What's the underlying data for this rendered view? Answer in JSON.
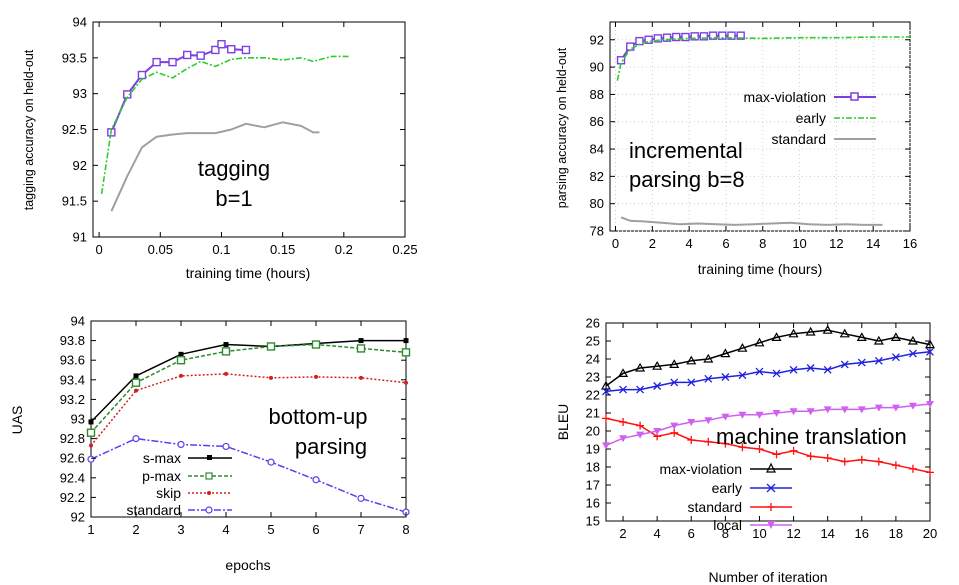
{
  "chart_data": [
    {
      "type": "line",
      "ylabel": "tagging accuracy on held-out",
      "xlabel": "training time (hours)",
      "xlim": [
        -0.005,
        0.25
      ],
      "ylim": [
        91,
        94
      ],
      "xticks": [
        "0",
        "0.05",
        "0.1",
        "0.15",
        "0.2",
        "0.25"
      ],
      "yticks": [
        "91",
        "91.5",
        "92",
        "92.5",
        "93",
        "93.5",
        "94"
      ],
      "annotation": [
        "tagging",
        "b=1"
      ],
      "series": [
        {
          "key": "maxv",
          "color": "#7b3fe4",
          "x": [
            0.01,
            0.023,
            0.035,
            0.047,
            0.06,
            0.072,
            0.083,
            0.095,
            0.1,
            0.108,
            0.12
          ],
          "y": [
            92.46,
            92.99,
            93.26,
            93.44,
            93.44,
            93.54,
            93.53,
            93.61,
            93.69,
            93.62,
            93.61
          ]
        },
        {
          "key": "early",
          "color": "#2fcc2f",
          "x": [
            0.002,
            0.01,
            0.023,
            0.035,
            0.047,
            0.06,
            0.072,
            0.083,
            0.095,
            0.108,
            0.12,
            0.135,
            0.15,
            0.165,
            0.175,
            0.19,
            0.205
          ],
          "y": [
            91.6,
            92.5,
            92.95,
            93.2,
            93.3,
            93.22,
            93.35,
            93.45,
            93.38,
            93.48,
            93.5,
            93.5,
            93.47,
            93.5,
            93.45,
            93.52,
            93.52
          ]
        },
        {
          "key": "std",
          "color": "#a0a0a0",
          "x": [
            0.01,
            0.023,
            0.035,
            0.047,
            0.06,
            0.072,
            0.083,
            0.095,
            0.108,
            0.12,
            0.135,
            0.15,
            0.165,
            0.175,
            0.18
          ],
          "y": [
            91.36,
            91.85,
            92.25,
            92.4,
            92.43,
            92.45,
            92.45,
            92.45,
            92.5,
            92.58,
            92.53,
            92.6,
            92.55,
            92.46,
            92.46
          ]
        }
      ]
    },
    {
      "type": "line",
      "ylabel": "parsing accuracy on held-out",
      "xlabel": "training time (hours)",
      "xlim": [
        -0.3,
        16
      ],
      "ylim": [
        78,
        93.3
      ],
      "xticks": [
        "0",
        "2",
        "4",
        "6",
        "8",
        "10",
        "12",
        "14",
        "16"
      ],
      "yticks": [
        "78",
        "80",
        "82",
        "84",
        "86",
        "88",
        "90",
        "92"
      ],
      "annotation": [
        "incremental",
        "parsing b=8"
      ],
      "legend": [
        "max-violation",
        "early",
        "standard"
      ],
      "series": [
        {
          "key": "maxv",
          "color": "#7b3fe4",
          "x": [
            0.3,
            0.8,
            1.3,
            1.8,
            2.3,
            2.8,
            3.3,
            3.8,
            4.3,
            4.8,
            5.3,
            5.8,
            6.3,
            6.8
          ],
          "y": [
            90.5,
            91.5,
            91.9,
            92.0,
            92.1,
            92.15,
            92.2,
            92.2,
            92.25,
            92.25,
            92.3,
            92.3,
            92.3,
            92.3
          ]
        },
        {
          "key": "early",
          "color": "#2fcc2f",
          "x": [
            0.1,
            0.3,
            0.8,
            1.5,
            2.5,
            4,
            6,
            8,
            10,
            12,
            14,
            16
          ],
          "y": [
            89.0,
            90.3,
            91.3,
            91.8,
            92.0,
            92.1,
            92.15,
            92.1,
            92.15,
            92.15,
            92.2,
            92.2
          ]
        },
        {
          "key": "std",
          "color": "#a0a0a0",
          "x": [
            0.3,
            0.8,
            1.5,
            2.5,
            3.5,
            4.5,
            5.5,
            6.5,
            7.5,
            8.5,
            9.5,
            10.5,
            11.5,
            12.5,
            13.5,
            14.5
          ],
          "y": [
            79.0,
            78.75,
            78.7,
            78.6,
            78.5,
            78.55,
            78.5,
            78.45,
            78.5,
            78.55,
            78.6,
            78.5,
            78.45,
            78.5,
            78.45,
            78.45
          ]
        }
      ]
    },
    {
      "type": "line",
      "ylabel": "UAS",
      "xlabel": "epochs",
      "xlim": [
        1,
        8
      ],
      "ylim": [
        92,
        94
      ],
      "xticks": [
        "1",
        "2",
        "3",
        "4",
        "5",
        "6",
        "7",
        "8"
      ],
      "yticks": [
        "92",
        "92.2",
        "92.4",
        "92.6",
        "92.8",
        "93",
        "93.2",
        "93.4",
        "93.6",
        "93.8",
        "94"
      ],
      "annotation": [
        "bottom-up",
        "parsing"
      ],
      "legend": [
        "s-max",
        "p-max",
        "skip",
        "standard"
      ],
      "series": [
        {
          "key": "smax",
          "color": "#000000",
          "x": [
            1,
            2,
            3,
            4,
            5,
            6,
            7,
            8
          ],
          "y": [
            92.97,
            93.44,
            93.66,
            93.76,
            93.74,
            93.77,
            93.8,
            93.8
          ]
        },
        {
          "key": "pmax",
          "color": "#2e8b2e",
          "x": [
            1,
            2,
            3,
            4,
            5,
            6,
            7,
            8
          ],
          "y": [
            92.86,
            93.37,
            93.6,
            93.69,
            93.74,
            93.76,
            93.72,
            93.68
          ]
        },
        {
          "key": "skip",
          "color": "#d02020",
          "x": [
            1,
            2,
            3,
            4,
            5,
            6,
            7,
            8
          ],
          "y": [
            92.73,
            93.29,
            93.44,
            93.46,
            93.42,
            93.43,
            93.42,
            93.37
          ]
        },
        {
          "key": "std",
          "color": "#5a3ff0",
          "x": [
            1,
            2,
            3,
            4,
            5,
            6,
            7,
            8
          ],
          "y": [
            92.59,
            92.8,
            92.74,
            92.72,
            92.56,
            92.38,
            92.19,
            92.05
          ]
        }
      ]
    },
    {
      "type": "line",
      "ylabel": "BLEU",
      "xlabel": "Number of iteration",
      "xlim": [
        1,
        20
      ],
      "ylim": [
        15,
        26
      ],
      "xticks": [
        "2",
        "4",
        "6",
        "8",
        "10",
        "12",
        "14",
        "16",
        "18",
        "20"
      ],
      "yticks": [
        "15",
        "16",
        "17",
        "18",
        "19",
        "20",
        "21",
        "22",
        "23",
        "24",
        "25",
        "26"
      ],
      "annotation": [
        "machine translation"
      ],
      "legend": [
        "max-violation",
        "early",
        "standard",
        "local"
      ],
      "series": [
        {
          "key": "maxv",
          "color": "#000000",
          "x": [
            1,
            2,
            3,
            4,
            5,
            6,
            7,
            8,
            9,
            10,
            11,
            12,
            13,
            14,
            15,
            16,
            17,
            18,
            19,
            20
          ],
          "y": [
            22.5,
            23.2,
            23.5,
            23.6,
            23.7,
            23.9,
            24.0,
            24.3,
            24.6,
            24.9,
            25.2,
            25.4,
            25.5,
            25.6,
            25.4,
            25.2,
            25.0,
            25.2,
            25.0,
            24.8
          ]
        },
        {
          "key": "early",
          "color": "#2020e0",
          "x": [
            1,
            2,
            3,
            4,
            5,
            6,
            7,
            8,
            9,
            10,
            11,
            12,
            13,
            14,
            15,
            16,
            17,
            18,
            19,
            20
          ],
          "y": [
            22.2,
            22.3,
            22.3,
            22.5,
            22.7,
            22.7,
            22.9,
            23.0,
            23.1,
            23.3,
            23.2,
            23.4,
            23.5,
            23.4,
            23.7,
            23.8,
            23.9,
            24.1,
            24.3,
            24.4
          ]
        },
        {
          "key": "std",
          "color": "#ff1010",
          "x": [
            1,
            2,
            3,
            4,
            5,
            6,
            7,
            8,
            9,
            10,
            11,
            12,
            13,
            14,
            15,
            16,
            17,
            18,
            19,
            20
          ],
          "y": [
            20.7,
            20.5,
            20.3,
            19.7,
            19.9,
            19.5,
            19.4,
            19.3,
            19.1,
            19.0,
            18.7,
            18.9,
            18.6,
            18.5,
            18.3,
            18.4,
            18.3,
            18.1,
            17.9,
            17.7
          ]
        },
        {
          "key": "local",
          "color": "#d060f0",
          "x": [
            1,
            2,
            3,
            4,
            5,
            6,
            7,
            8,
            9,
            10,
            11,
            12,
            13,
            14,
            15,
            16,
            17,
            18,
            19,
            20
          ],
          "y": [
            19.2,
            19.6,
            19.8,
            20.0,
            20.3,
            20.5,
            20.6,
            20.8,
            20.9,
            20.9,
            21.0,
            21.1,
            21.1,
            21.2,
            21.2,
            21.2,
            21.3,
            21.3,
            21.4,
            21.5
          ]
        }
      ]
    }
  ]
}
